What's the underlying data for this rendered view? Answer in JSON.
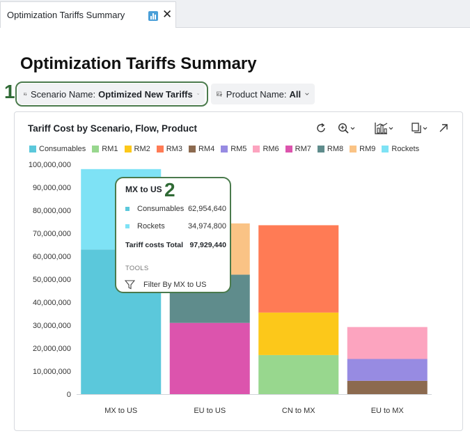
{
  "tab": {
    "title": "Optimization Tariffs Summary",
    "chart_icon": "bar-chart-icon",
    "close_label": "✕"
  },
  "page": {
    "title": "Optimization Tariffs Summary"
  },
  "filters": {
    "scenario": {
      "label": "Scenario Name:",
      "value": "Optimized New Tariffs"
    },
    "product": {
      "label": "Product Name:",
      "value": "All"
    }
  },
  "annotations": {
    "one": "1",
    "two": "2"
  },
  "toolbar": {
    "icons": [
      "refresh-icon",
      "zoom-icon",
      "chart-type-icon",
      "copy-icon",
      "expand-icon"
    ]
  },
  "legend": [
    {
      "name": "Consumables",
      "color": "#5bc8db"
    },
    {
      "name": "RM1",
      "color": "#98d78e"
    },
    {
      "name": "RM2",
      "color": "#fcc81a"
    },
    {
      "name": "RM3",
      "color": "#ff7b55"
    },
    {
      "name": "RM4",
      "color": "#8c6a4f"
    },
    {
      "name": "RM5",
      "color": "#978be2"
    },
    {
      "name": "RM6",
      "color": "#fca4bf"
    },
    {
      "name": "RM7",
      "color": "#dc54ad"
    },
    {
      "name": "RM8",
      "color": "#5f8c8c"
    },
    {
      "name": "RM9",
      "color": "#fac385"
    },
    {
      "name": "Rockets",
      "color": "#7ee2f5"
    }
  ],
  "chart_data": {
    "type": "bar",
    "stacked": true,
    "title": "Tariff Cost by Scenario, Flow, Product",
    "xlabel": "",
    "ylabel": "",
    "ylim": [
      0,
      100000000
    ],
    "yticks": [
      0,
      10000000,
      20000000,
      30000000,
      40000000,
      50000000,
      60000000,
      70000000,
      80000000,
      90000000,
      100000000
    ],
    "categories": [
      "MX to US",
      "EU to US",
      "CN to MX",
      "EU to MX"
    ],
    "series": [
      {
        "name": "Consumables",
        "values": [
          62954640,
          0,
          0,
          0
        ]
      },
      {
        "name": "RM1",
        "values": [
          0,
          0,
          17000000,
          0
        ]
      },
      {
        "name": "RM2",
        "values": [
          0,
          0,
          18500000,
          0
        ]
      },
      {
        "name": "RM3",
        "values": [
          0,
          0,
          38000000,
          0
        ]
      },
      {
        "name": "RM4",
        "values": [
          0,
          0,
          0,
          5800000
        ]
      },
      {
        "name": "RM5",
        "values": [
          0,
          0,
          0,
          9500000
        ]
      },
      {
        "name": "RM6",
        "values": [
          0,
          0,
          0,
          13900000
        ]
      },
      {
        "name": "RM7",
        "values": [
          0,
          31000000,
          0,
          0
        ]
      },
      {
        "name": "RM8",
        "values": [
          0,
          21000000,
          0,
          0
        ]
      },
      {
        "name": "RM9",
        "values": [
          0,
          22300000,
          0,
          0
        ]
      },
      {
        "name": "Rockets",
        "values": [
          34974800,
          0,
          0,
          0
        ]
      }
    ]
  },
  "tooltip": {
    "title": "MX to US",
    "rows": [
      {
        "name": "Consumables",
        "value": "62,954,640",
        "color": "#5bc8db"
      },
      {
        "name": "Rockets",
        "value": "34,974,800",
        "color": "#7ee2f5"
      }
    ],
    "total_label": "Tariff costs Total",
    "total_value": "97,929,440",
    "tools_label": "TOOLS",
    "filter_label": "Filter By MX to US"
  }
}
